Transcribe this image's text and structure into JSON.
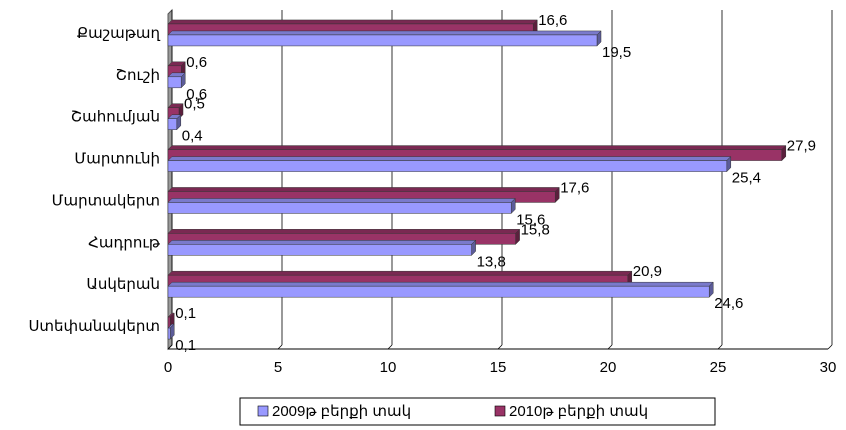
{
  "chart_data": {
    "type": "bar",
    "categories": [
      "Քաշաթաղ",
      "Շուշի",
      "Շահումյան",
      "Մարտունի",
      "Մարտակերտ",
      "Հադրութ",
      "Ասկերան",
      "Ստեփանակերտ"
    ],
    "series": [
      {
        "name": "2009թ բերքի տակ",
        "color": "#9999ff",
        "values": [
          19.5,
          0.6,
          0.4,
          25.4,
          15.6,
          13.8,
          24.6,
          0.1
        ],
        "value_labels": [
          "19,5",
          "0,6",
          "0,4",
          "25,4",
          "15,6",
          "13,8",
          "24,6",
          "0,1"
        ]
      },
      {
        "name": "2010թ բերքի տակ",
        "color": "#993366",
        "values": [
          16.6,
          0.6,
          0.5,
          27.9,
          17.6,
          15.8,
          20.9,
          0.1
        ],
        "value_labels": [
          "16,6",
          "0,6",
          "0,5",
          "27,9",
          "17,6",
          "15,8",
          "20,9",
          "0,1"
        ]
      }
    ],
    "xlim": [
      0,
      30
    ],
    "xticks": [
      0,
      5,
      10,
      15,
      20,
      25,
      30
    ],
    "grid": true,
    "legend": "bottom"
  }
}
